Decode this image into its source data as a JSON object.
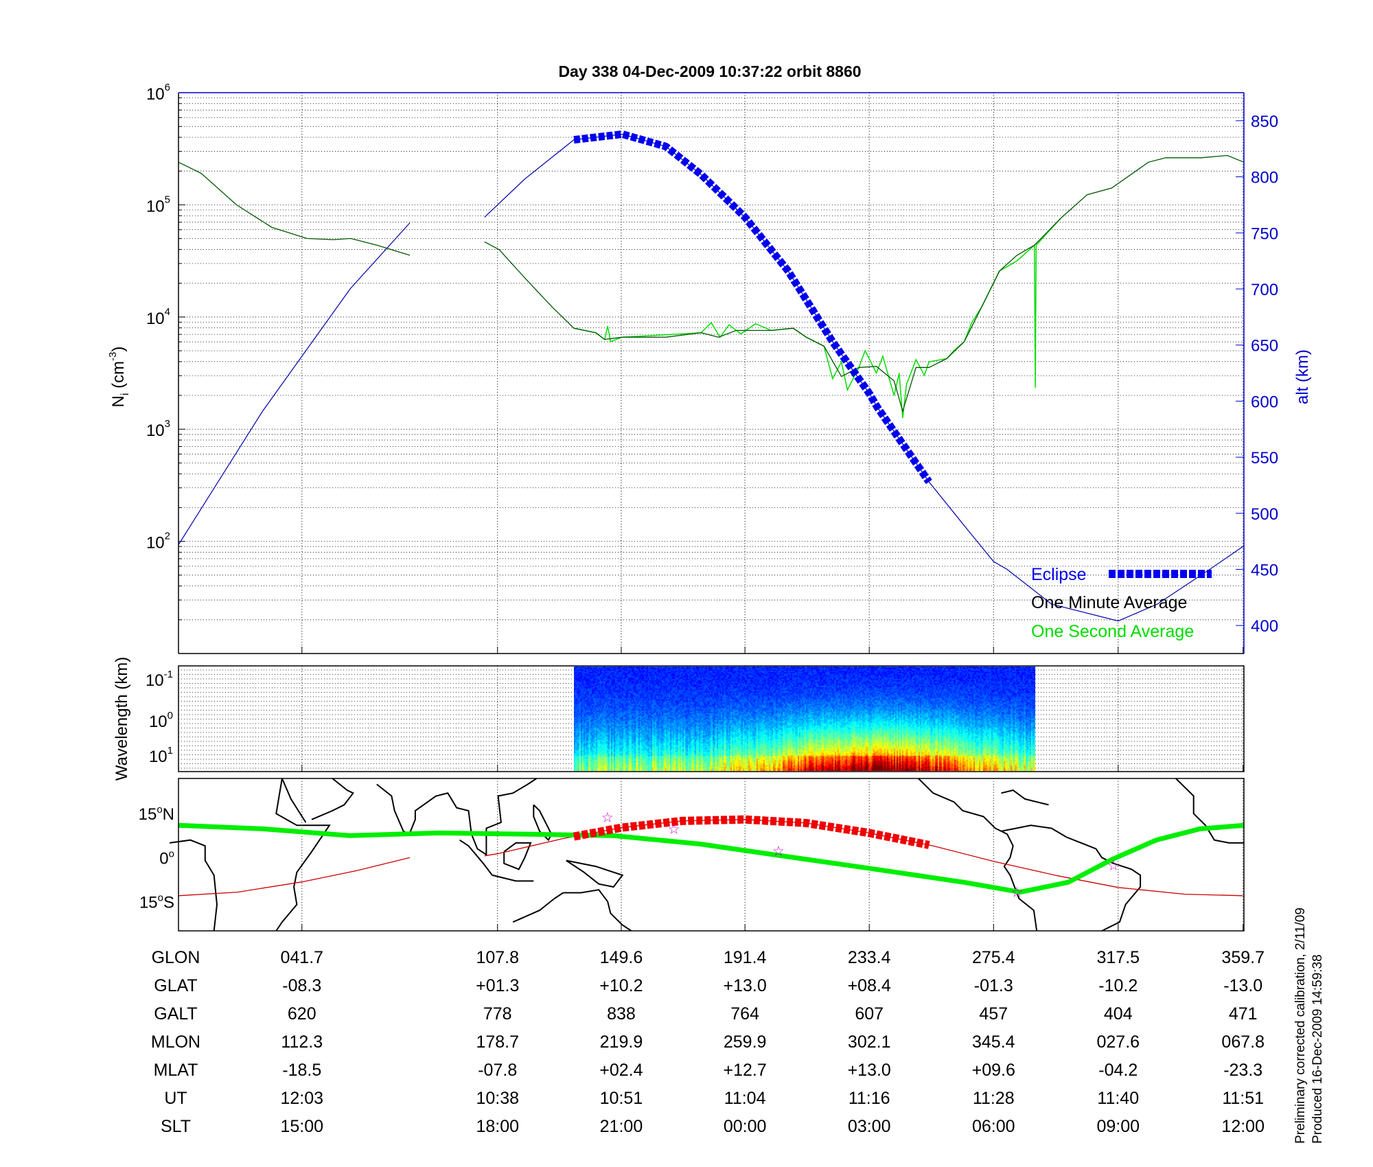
{
  "chart_data": [
    {
      "type": "line",
      "title": "Day 338  04-Dec-2009 10:37:22   orbit 8860",
      "xlim": [
        0,
        360
      ],
      "x_ticks": [
        41.7,
        107.8,
        149.6,
        191.4,
        233.4,
        275.4,
        317.5,
        359.7
      ],
      "ylabel": "N_i (cm^-3)",
      "ylabel_main": "N",
      "ylabel_sub": "i",
      "ylabel_rest": " (cm",
      "ylabel_sup": "-3",
      "ylabel_close": ")",
      "yscale": "log",
      "ylim": [
        10,
        1000000
      ],
      "y_ticks": [
        {
          "base": "10",
          "exp": "2",
          "value": 100
        },
        {
          "base": "10",
          "exp": "3",
          "value": 1000
        },
        {
          "base": "10",
          "exp": "4",
          "value": 10000
        },
        {
          "base": "10",
          "exp": "5",
          "value": 100000
        },
        {
          "base": "10",
          "exp": "6",
          "value": 1000000
        }
      ],
      "y2label": "alt (km)",
      "y2lim": [
        375,
        875
      ],
      "y2_ticks": [
        "400",
        "450",
        "500",
        "550",
        "600",
        "650",
        "700",
        "750",
        "800",
        "850"
      ],
      "grid": true,
      "legend_placement": "bottom-right",
      "colors": {
        "altitude": "#0000aa",
        "eclipse": "#0000ee",
        "one_minute": "#005500",
        "one_second": "#00dd00",
        "axis2": "#0000cc"
      },
      "series": [
        {
          "name": "One Minute Average",
          "axis": "left",
          "x": [
            0,
            7.7,
            19.6,
            31.5,
            43.4,
            52.3,
            58.2,
            67.1,
            78.2,
            null,
            103.4,
            108.4,
            117.3,
            126.2,
            133.6,
            141,
            144,
            149.9,
            164.7,
            176.6,
            182.5,
            188.4,
            200.3,
            207.7,
            212.1,
            218.1,
            224,
            229.9,
            235.8,
            241.8,
            244.7,
            249.2,
            253.6,
            259.6,
            265.5,
            271.4,
            277.4,
            283.3,
            289.2,
            298.1,
            307,
            315.3,
            321.8,
            327.7,
            333.6,
            345.5,
            354.4,
            360
          ],
          "y_log10": [
            5.38,
            5.28,
            5.0,
            4.8,
            4.7,
            4.69,
            4.7,
            4.64,
            4.55,
            null,
            4.67,
            4.6,
            4.34,
            4.09,
            3.9,
            3.86,
            3.8,
            3.82,
            3.82,
            3.86,
            3.82,
            3.88,
            3.88,
            3.9,
            3.82,
            3.74,
            3.47,
            3.55,
            3.56,
            3.43,
            3.16,
            3.55,
            3.55,
            3.63,
            3.78,
            4.09,
            4.41,
            4.55,
            4.64,
            4.88,
            5.09,
            5.15,
            5.27,
            5.38,
            5.42,
            5.42,
            5.44,
            5.38
          ]
        },
        {
          "name": "One Second Average",
          "axis": "left",
          "x": [
            133.6,
            141,
            144,
            145,
            146,
            149.9,
            176.6,
            180,
            183,
            186,
            190,
            195,
            200.3,
            207.7,
            212.1,
            218.1,
            221,
            224,
            226,
            229.9,
            232,
            235.8,
            238,
            241.8,
            243.5,
            244.7,
            246,
            249.2,
            252,
            253.6,
            259.6,
            262,
            265.5,
            268,
            271.4,
            277.4,
            283.3,
            289.2,
            289.5,
            289.8,
            298.1
          ],
          "y_log10": [
            3.9,
            3.86,
            3.8,
            3.92,
            3.78,
            3.82,
            3.86,
            3.95,
            3.82,
            3.93,
            3.85,
            3.94,
            3.88,
            3.9,
            3.82,
            3.74,
            3.45,
            3.6,
            3.35,
            3.55,
            3.7,
            3.5,
            3.65,
            3.3,
            3.5,
            3.1,
            3.4,
            3.62,
            3.48,
            3.6,
            3.63,
            3.7,
            3.78,
            3.95,
            4.09,
            4.41,
            4.5,
            4.64,
            3.37,
            4.64,
            4.88
          ]
        },
        {
          "name": "alt",
          "axis": "right",
          "x": [
            0,
            28.4,
            58,
            78.2,
            null,
            103.4,
            117,
            133.6,
            150,
            164.7,
            176.6,
            191.4,
            206,
            221,
            233.4,
            236,
            253.6,
            265.5,
            275.4,
            280,
            295,
            317.5,
            330.7,
            348.4,
            360
          ],
          "y": [
            472,
            591,
            700,
            759,
            null,
            764,
            798,
            833,
            838,
            827,
            802,
            764,
            716,
            653,
            607,
            595,
            528,
            489,
            457,
            450,
            419,
            404,
            419,
            450,
            471
          ]
        },
        {
          "name": "Eclipse",
          "axis": "right",
          "x_range": [
            133.6,
            253.6
          ]
        }
      ],
      "legend": [
        "Eclipse",
        "One Minute Average",
        "One Second Average"
      ]
    },
    {
      "type": "heatmap",
      "ylabel": "Wavelength (km)",
      "yscale": "log",
      "y_ticks": [
        {
          "base": "10",
          "exp": "-1"
        },
        {
          "base": "10",
          "exp": "0"
        },
        {
          "base": "10",
          "exp": "1"
        }
      ],
      "y_reversed": true,
      "xlim": [
        0,
        360
      ],
      "data_x_range": [
        133.6,
        289.5
      ],
      "colormap": "jet"
    },
    {
      "type": "line",
      "title": "",
      "xlim": [
        0,
        360
      ],
      "ylim": [
        -25,
        27
      ],
      "y_ticks": [
        {
          "deg": "15",
          "hemi": "N",
          "value": 15
        },
        {
          "deg": "0",
          "hemi": "",
          "value": 0
        },
        {
          "deg": "15",
          "hemi": "S",
          "value": -15
        }
      ],
      "colors": {
        "track": "#cc0000",
        "eclipse_track": "#ee0000",
        "green_line": "#00ee00",
        "stars": "#cc00cc",
        "coast": "#000000"
      },
      "series": [
        {
          "name": "track",
          "x": [
            0,
            20,
            41.7,
            60,
            78.2,
            null,
            103.4,
            107.8,
            130,
            149.6,
            170,
            191.4,
            212,
            233.4,
            255,
            275.4,
            297,
            317.5,
            340,
            359.7
          ],
          "y": [
            -13,
            -11.8,
            -8.3,
            -4.5,
            0,
            null,
            0.6,
            1.3,
            6.5,
            10.2,
            12.5,
            13,
            11.8,
            8.4,
            4,
            -1.3,
            -6.2,
            -10.2,
            -12.5,
            -13
          ]
        },
        {
          "name": "eclipse_track",
          "x_range": [
            133.6,
            253.6
          ]
        },
        {
          "name": "green_line",
          "x": [
            0,
            28.4,
            58,
            87.6,
            117.2,
            146.8,
            176.4,
            206,
            235.6,
            265.1,
            284.4,
            300.7,
            315.5,
            330.4,
            345.2,
            360
          ],
          "y": [
            11,
            9.8,
            7.5,
            8.4,
            8,
            7.5,
            4.6,
            0.3,
            -4,
            -8.4,
            -11.8,
            -8.4,
            -0.6,
            6,
            9.8,
            11
          ]
        },
        {
          "name": "stars",
          "x": [
            144.9,
            167.4,
            202.7,
            283.3,
            315.9
          ],
          "y": [
            13.8,
            9.8,
            2.3,
            -11.8,
            -2.6
          ]
        }
      ]
    }
  ],
  "table": {
    "columns_x": [
      41.7,
      107.8,
      149.6,
      191.4,
      233.4,
      275.4,
      317.5,
      359.7
    ],
    "rows": [
      {
        "label": "GLON",
        "values": [
          "041.7",
          "107.8",
          "149.6",
          "191.4",
          "233.4",
          "275.4",
          "317.5",
          "359.7"
        ]
      },
      {
        "label": "GLAT",
        "values": [
          "-08.3",
          "+01.3",
          "+10.2",
          "+13.0",
          "+08.4",
          "-01.3",
          "-10.2",
          "-13.0"
        ]
      },
      {
        "label": "GALT",
        "values": [
          "620",
          "778",
          "838",
          "764",
          "607",
          "457",
          "404",
          "471"
        ]
      },
      {
        "label": "MLON",
        "values": [
          "112.3",
          "178.7",
          "219.9",
          "259.9",
          "302.1",
          "345.4",
          "027.6",
          "067.8"
        ]
      },
      {
        "label": "MLAT",
        "values": [
          "-18.5",
          "-07.8",
          "+02.4",
          "+12.7",
          "+13.0",
          "+09.6",
          "-04.2",
          "-23.3"
        ]
      },
      {
        "label": "UT",
        "values": [
          "12:03",
          "10:38",
          "10:51",
          "11:04",
          "11:16",
          "11:28",
          "11:40",
          "11:51"
        ]
      },
      {
        "label": "SLT",
        "values": [
          "15:00",
          "18:00",
          "21:00",
          "00:00",
          "03:00",
          "06:00",
          "09:00",
          "12:00"
        ]
      }
    ]
  },
  "footer": {
    "calibration_note": "Preliminary corrected calibration, 2/11/09",
    "produced_note": "Produced 16-Dec-2009 14:59:38"
  }
}
